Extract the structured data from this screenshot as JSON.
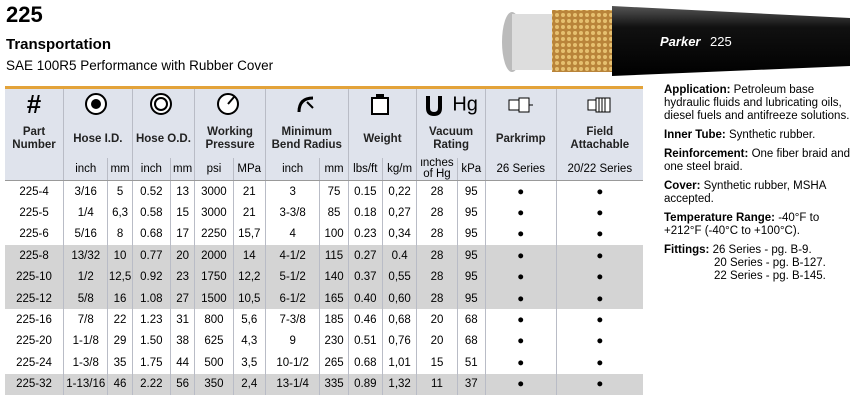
{
  "header": {
    "number": "225",
    "title": "Transportation",
    "subtitle": "SAE 100R5 Performance with Rubber Cover"
  },
  "hose_print": {
    "brand": "Parker",
    "code": "225"
  },
  "table": {
    "part_symbol": "#",
    "vacuum_symbol": "Hg",
    "groups": [
      "Part Number",
      "Hose I.D.",
      "Hose O.D.",
      "Working Pressure",
      "Minimum Bend Radius",
      "Weight",
      "Vacuum Rating",
      "Parkrimp",
      "Field Attachable"
    ],
    "units": [
      "inch",
      "mm",
      "inch",
      "mm",
      "psi",
      "MPa",
      "inch",
      "mm",
      "lbs/ft",
      "kg/m",
      "inches of Hg",
      "kPa",
      "26 Series",
      "20/22 Series"
    ],
    "rows": [
      [
        "225-4",
        "3/16",
        "5",
        "0.52",
        "13",
        "3000",
        "21",
        "3",
        "75",
        "0.15",
        "0,22",
        "28",
        "95",
        "●",
        "●"
      ],
      [
        "225-5",
        "1/4",
        "6,3",
        "0.58",
        "15",
        "3000",
        "21",
        "3-3/8",
        "85",
        "0.18",
        "0,27",
        "28",
        "95",
        "●",
        "●"
      ],
      [
        "225-6",
        "5/16",
        "8",
        "0.68",
        "17",
        "2250",
        "15,7",
        "4",
        "100",
        "0.23",
        "0,34",
        "28",
        "95",
        "●",
        "●"
      ],
      [
        "225-8",
        "13/32",
        "10",
        "0.77",
        "20",
        "2000",
        "14",
        "4-1/2",
        "115",
        "0.27",
        "0.4",
        "28",
        "95",
        "●",
        "●"
      ],
      [
        "225-10",
        "1/2",
        "12,5",
        "0.92",
        "23",
        "1750",
        "12,2",
        "5-1/2",
        "140",
        "0.37",
        "0,55",
        "28",
        "95",
        "●",
        "●"
      ],
      [
        "225-12",
        "5/8",
        "16",
        "1.08",
        "27",
        "1500",
        "10,5",
        "6-1/2",
        "165",
        "0.40",
        "0,60",
        "28",
        "95",
        "●",
        "●"
      ],
      [
        "225-16",
        "7/8",
        "22",
        "1.23",
        "31",
        "800",
        "5,6",
        "7-3/8",
        "185",
        "0.46",
        "0,68",
        "20",
        "68",
        "●",
        "●"
      ],
      [
        "225-20",
        "1-1/8",
        "29",
        "1.50",
        "38",
        "625",
        "4,3",
        "9",
        "230",
        "0.51",
        "0,76",
        "20",
        "68",
        "●",
        "●"
      ],
      [
        "225-24",
        "1-3/8",
        "35",
        "1.75",
        "44",
        "500",
        "3,5",
        "10-1/2",
        "265",
        "0.68",
        "1,01",
        "15",
        "51",
        "●",
        "●"
      ],
      [
        "225-32",
        "1-13/16",
        "46",
        "2.22",
        "56",
        "350",
        "2,4",
        "13-1/4",
        "335",
        "0.89",
        "1,32",
        "11",
        "37",
        "●",
        "●"
      ]
    ]
  },
  "notes": [
    {
      "label": "Application:",
      "text": "Petroleum base hydraulic fluids and lubricating oils, diesel fuels and antifreeze solutions."
    },
    {
      "label": "Inner Tube:",
      "text": "Synthetic rubber."
    },
    {
      "label": "Reinforcement:",
      "text": "One fiber braid and one steel braid."
    },
    {
      "label": "Cover:",
      "text": "Synthetic rubber, MSHA accepted."
    },
    {
      "label": "Temperature Range:",
      "text": "-40°F to +212°F (-40°C to +100°C)."
    },
    {
      "label": "Fittings:",
      "lines": [
        "26 Series - pg. B-9.",
        "20 Series - pg. B-127.",
        "22 Series - pg. B-145."
      ]
    }
  ]
}
